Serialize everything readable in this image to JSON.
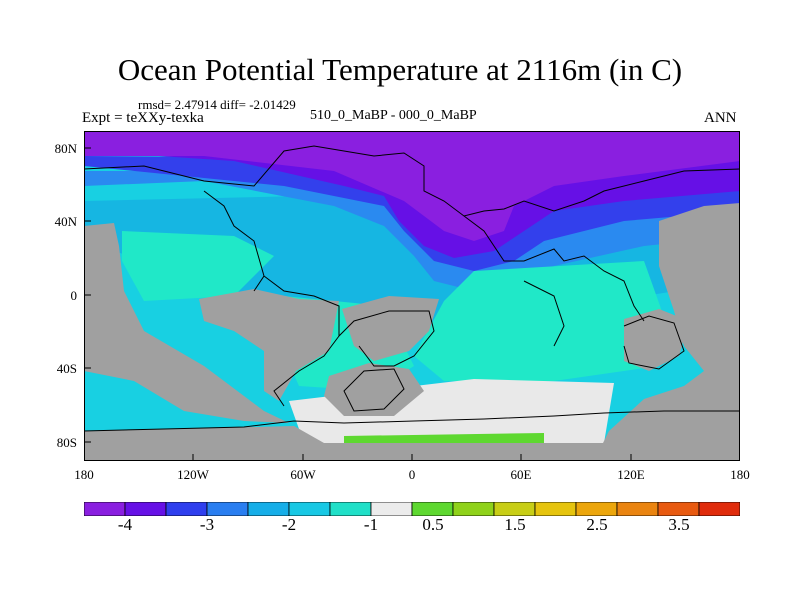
{
  "figure": {
    "title": "Ocean Potential Temperature at 2116m (in C)",
    "stats": "rmsd= 2.47914 diff= -2.01429",
    "experiment": "Expt = teXXy-texka",
    "case": "510_0_MaBP - 000_0_MaBP",
    "season": "ANN"
  },
  "map": {
    "lat_ticks": [
      "80N",
      "40N",
      "0",
      "40S",
      "80S"
    ],
    "lon_ticks": [
      "180",
      "120W",
      "60W",
      "0",
      "60E",
      "120E",
      "180"
    ],
    "land_color": "#a0a0a0",
    "region_colors": {
      "arctic": "#8a1fe0",
      "band_deep": "#6610e6",
      "band_mid": "#3340ec",
      "band_light": "#2a8af0",
      "mid_cyan": "#16b6e2",
      "tropical": "#18d0e2",
      "aqua": "#20e8c8",
      "southern": "#e9e9e9",
      "coast": "#5ed830"
    }
  },
  "colorbar": {
    "colors": [
      "#8a1fe0",
      "#6610e6",
      "#2f3fee",
      "#2a7ef0",
      "#16aee8",
      "#18c8e4",
      "#20e0c8",
      "#ececec",
      "#5ed830",
      "#8fd21a",
      "#c8ce16",
      "#e6c40e",
      "#eca60c",
      "#ea8410",
      "#e85a10",
      "#e02c0c"
    ],
    "labels": [
      "-4",
      "-3",
      "-2",
      "-1",
      "0.5",
      "1.5",
      "2.5",
      "3.5"
    ]
  }
}
